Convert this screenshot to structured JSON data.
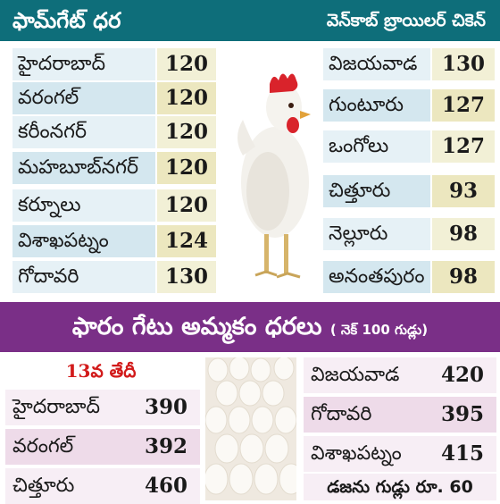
{
  "header_top": {
    "left_title": "ఫామ్‌గేట్ ధర",
    "right_title": "వెన్‌కాబ్ బ్రాయిలర్ చికెన్"
  },
  "top_left_rows": [
    {
      "name": "హైదరాబాద్",
      "value": "120"
    },
    {
      "name": "వరంగల్",
      "value": "120"
    },
    {
      "name": "కరీంనగర్",
      "value": "120"
    },
    {
      "name": "మహబూబ్‌నగర్",
      "value": "120"
    },
    {
      "name": "కర్నూలు",
      "value": "120"
    },
    {
      "name": "విశాఖపట్నం",
      "value": "124"
    },
    {
      "name": "గోదావరి",
      "value": "130"
    }
  ],
  "top_right_rows": [
    {
      "name": "విజయవాడ",
      "value": "130"
    },
    {
      "name": "గుంటూరు",
      "value": "127"
    },
    {
      "name": "ఒంగోలు",
      "value": "127"
    },
    {
      "name": "చిత్తూరు",
      "value": "93"
    },
    {
      "name": "నెల్లూరు",
      "value": "98"
    },
    {
      "name": "అనంతపురం",
      "value": "98"
    }
  ],
  "header_bottom": {
    "title": "ఫారం గేటు అమ్మకం ధరలు",
    "subtitle": "( నెక్ 100 గుడ్లు)"
  },
  "date_label": "13వ తేదీ",
  "bottom_left_rows": [
    {
      "name": "హైదరాబాద్",
      "value": "390"
    },
    {
      "name": "వరంగల్",
      "value": "392"
    },
    {
      "name": "చిత్తూరు",
      "value": "460"
    }
  ],
  "bottom_right_rows": [
    {
      "name": "విజయవాడ",
      "value": "420"
    },
    {
      "name": "గోదావరి",
      "value": "395"
    },
    {
      "name": "విశాఖపట్నం",
      "value": "415"
    }
  ],
  "footnote": "డజను గుడ్లు రూ. 60",
  "colors": {
    "top_header": "#0e6e7a",
    "bottom_header": "#7a2f87",
    "date_text": "#d21b1b"
  }
}
